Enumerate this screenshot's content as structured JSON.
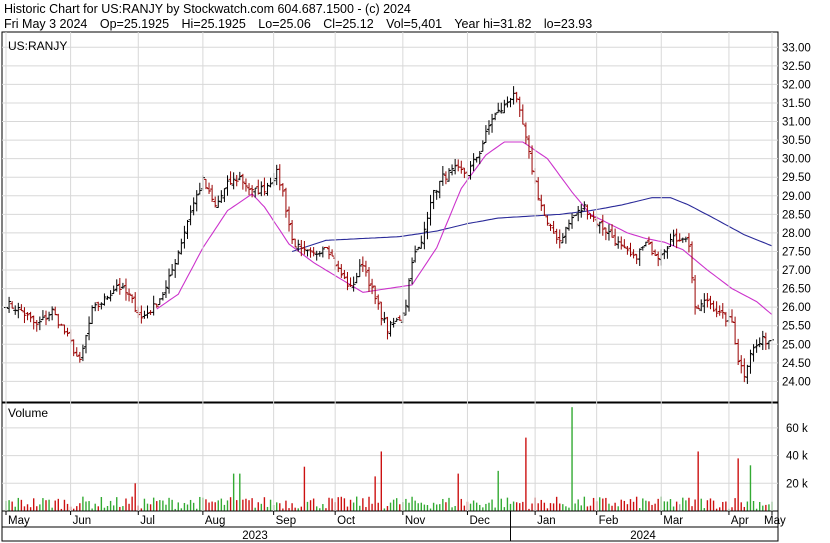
{
  "header": {
    "title": "Historic Chart for US:RANJY by Stockwatch.com 604.687.1500 - (c) 2024",
    "date": "Fri May  3 2024",
    "op": "Op=25.1925",
    "hi": "Hi=25.1925",
    "lo": "Lo=25.06",
    "cl": "Cl=25.12",
    "vol": "Vol=5,401",
    "year_hi": "Year hi=31.82",
    "year_lo": "lo=23.93"
  },
  "chart_data": [
    {
      "type": "ohlc",
      "title": "US:RANJY",
      "ylim": [
        23.5,
        33.25
      ],
      "yticks": [
        "24.00",
        "24.50",
        "25.00",
        "25.50",
        "26.00",
        "26.50",
        "27.00",
        "27.50",
        "28.00",
        "28.50",
        "29.00",
        "29.50",
        "30.00",
        "30.50",
        "31.00",
        "31.50",
        "32.00",
        "32.50",
        "33.00"
      ],
      "grid": true,
      "anchors": {
        "close": [
          [
            0,
            26.1
          ],
          [
            5,
            25.9
          ],
          [
            10,
            25.5
          ],
          [
            15,
            25.9
          ],
          [
            20,
            25.2
          ],
          [
            24,
            24.5
          ],
          [
            28,
            25.9
          ],
          [
            32,
            26.2
          ],
          [
            36,
            26.6
          ],
          [
            40,
            26.3
          ],
          [
            44,
            25.7
          ],
          [
            48,
            26.0
          ],
          [
            52,
            26.5
          ],
          [
            56,
            27.5
          ],
          [
            60,
            28.6
          ],
          [
            64,
            29.4
          ],
          [
            68,
            28.7
          ],
          [
            72,
            29.3
          ],
          [
            76,
            29.5
          ],
          [
            80,
            29.1
          ],
          [
            84,
            29.2
          ],
          [
            88,
            29.6
          ],
          [
            90,
            29.1
          ],
          [
            93,
            27.8
          ],
          [
            96,
            27.5
          ],
          [
            100,
            27.4
          ],
          [
            104,
            27.7
          ],
          [
            108,
            27.0
          ],
          [
            112,
            26.5
          ],
          [
            116,
            27.2
          ],
          [
            120,
            26.2
          ],
          [
            124,
            25.4
          ],
          [
            128,
            25.7
          ],
          [
            130,
            26.1
          ],
          [
            132,
            27.3
          ],
          [
            135,
            27.7
          ],
          [
            138,
            28.9
          ],
          [
            142,
            29.5
          ],
          [
            146,
            29.7
          ],
          [
            150,
            29.6
          ],
          [
            154,
            30.2
          ],
          [
            158,
            31.1
          ],
          [
            162,
            31.4
          ],
          [
            165,
            31.8
          ],
          [
            168,
            30.9
          ],
          [
            170,
            30.1
          ],
          [
            173,
            29.0
          ],
          [
            176,
            28.2
          ],
          [
            180,
            27.8
          ],
          [
            184,
            28.4
          ],
          [
            188,
            28.7
          ],
          [
            192,
            28.3
          ],
          [
            196,
            28.0
          ],
          [
            200,
            27.6
          ],
          [
            204,
            27.3
          ],
          [
            208,
            27.7
          ],
          [
            212,
            27.4
          ],
          [
            216,
            27.8
          ],
          [
            220,
            27.9
          ],
          [
            222,
            27.7
          ],
          [
            224,
            25.9
          ],
          [
            228,
            26.2
          ],
          [
            232,
            25.8
          ],
          [
            236,
            25.6
          ],
          [
            238,
            24.6
          ],
          [
            240,
            24.2
          ],
          [
            242,
            24.8
          ],
          [
            246,
            25.1
          ],
          [
            249,
            25.12
          ]
        ],
        "ma_short": [
          [
            0,
            null
          ],
          [
            48,
            null
          ],
          [
            49,
            25.95
          ],
          [
            56,
            26.35
          ],
          [
            64,
            27.6
          ],
          [
            72,
            28.6
          ],
          [
            80,
            29.05
          ],
          [
            84,
            28.7
          ],
          [
            92,
            27.7
          ],
          [
            100,
            27.2
          ],
          [
            108,
            26.8
          ],
          [
            116,
            26.4
          ],
          [
            124,
            26.5
          ],
          [
            132,
            26.6
          ],
          [
            140,
            27.6
          ],
          [
            148,
            29.2
          ],
          [
            156,
            30.1
          ],
          [
            162,
            30.45
          ],
          [
            168,
            30.45
          ],
          [
            176,
            30.0
          ],
          [
            184,
            29.1
          ],
          [
            190,
            28.5
          ],
          [
            196,
            28.25
          ],
          [
            202,
            28.0
          ],
          [
            208,
            27.85
          ],
          [
            214,
            27.75
          ],
          [
            220,
            27.55
          ],
          [
            228,
            27.0
          ],
          [
            236,
            26.5
          ],
          [
            244,
            26.15
          ],
          [
            249,
            25.8
          ]
        ],
        "ma_long": [
          [
            0,
            null
          ],
          [
            92,
            null
          ],
          [
            93,
            27.5
          ],
          [
            104,
            27.8
          ],
          [
            116,
            27.85
          ],
          [
            128,
            27.9
          ],
          [
            140,
            28.05
          ],
          [
            150,
            28.25
          ],
          [
            160,
            28.4
          ],
          [
            170,
            28.45
          ],
          [
            180,
            28.5
          ],
          [
            190,
            28.6
          ],
          [
            200,
            28.75
          ],
          [
            210,
            28.95
          ],
          [
            216,
            28.95
          ],
          [
            222,
            28.75
          ],
          [
            230,
            28.4
          ],
          [
            240,
            27.95
          ],
          [
            249,
            27.65
          ]
        ]
      },
      "colors": {
        "up": "#000000",
        "down": "#990000",
        "ma_short": "#cc33cc",
        "ma_long": "#2a2a99",
        "grid": "#d8d8d8",
        "axis": "#000000"
      }
    },
    {
      "type": "bar",
      "title": "Volume",
      "ylim": [
        0,
        78000
      ],
      "yticks": [
        "20 k",
        "40 k",
        "60 k"
      ],
      "spikes": [
        [
          42,
          20000
        ],
        [
          74,
          27000
        ],
        [
          76,
          27000
        ],
        [
          97,
          32000
        ],
        [
          120,
          25000
        ],
        [
          122,
          43000
        ],
        [
          147,
          27000
        ],
        [
          160,
          29000
        ],
        [
          169,
          53000
        ],
        [
          184,
          75000
        ],
        [
          225,
          43000
        ],
        [
          238,
          38000
        ],
        [
          242,
          33000
        ]
      ],
      "colors": {
        "up": "#33aa33",
        "down": "#cc1111",
        "flat": "#aaaaaa"
      }
    }
  ],
  "x_axis": {
    "months": [
      "May",
      "Jun",
      "Jul",
      "Aug",
      "Sep",
      "Oct",
      "Nov",
      "Dec",
      "Jan",
      "Feb",
      "Mar",
      "Apr",
      "May"
    ],
    "years": [
      "2023",
      "2024"
    ]
  }
}
